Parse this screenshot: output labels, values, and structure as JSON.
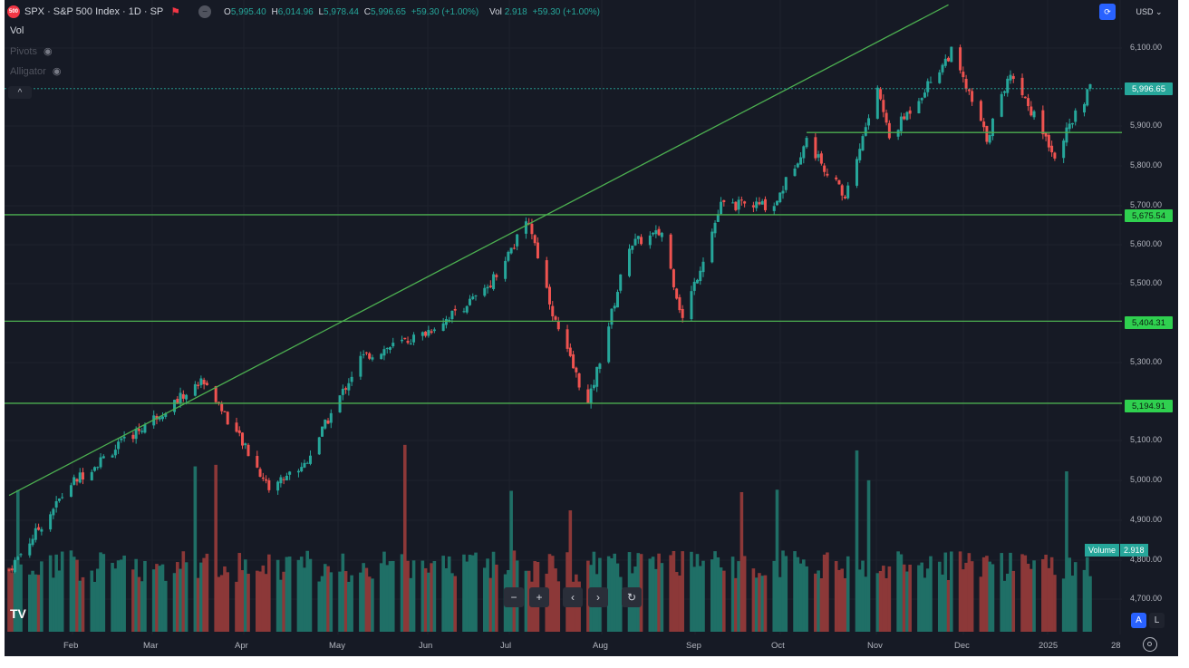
{
  "header": {
    "badge_text": "500",
    "title": "SPX · S&P 500 Index · 1D · SP",
    "ohlc": {
      "o_label": "O",
      "o": "5,995.40",
      "h_label": "H",
      "h": "6,014.96",
      "l_label": "L",
      "l": "5,978.44",
      "c_label": "C",
      "c": "5,996.65",
      "change": "+59.30 (+1.00%)",
      "vol_label": "Vol",
      "vol": "2.918",
      "vol_change": "+59.30 (+1.00%)"
    }
  },
  "panel": {
    "vol_label": "Vol",
    "pivots_label": "Pivots",
    "alligator_label": "Alligator",
    "collapse_glyph": "^"
  },
  "toolbar": {
    "currency": "USD",
    "currency_caret": "⌄",
    "nav": [
      "−",
      "+",
      "‹",
      "›",
      "↻"
    ],
    "scale_auto": "A",
    "scale_log": "L"
  },
  "price_axis": {
    "ticks": [
      "6,100.00",
      "5,900.00",
      "5,800.00",
      "5,700.00",
      "5,600.00",
      "5,500.00",
      "5,300.00",
      "5,100.00",
      "5,000.00",
      "4,900.00",
      "4,800.00",
      "4,700.00"
    ],
    "tags": {
      "last": "5,996.65",
      "level1": "5,675.54",
      "level2": "5,404.31",
      "level3": "5,194.91"
    }
  },
  "volume_tag": {
    "label": "Volume",
    "value": "2.918"
  },
  "time_axis": [
    "Feb",
    "Mar",
    "Apr",
    "May",
    "Jun",
    "Jul",
    "Aug",
    "Sep",
    "Oct",
    "Nov",
    "Dec",
    "2025",
    "28"
  ],
  "logo_text": "TV",
  "colors": {
    "up": "#26a69a",
    "down": "#ef5350",
    "level_line": "#4caf50",
    "background": "#161a25",
    "tag_bg": "#2fd04f"
  },
  "chart_data": {
    "type": "candlestick",
    "symbol": "SPX",
    "timeframe": "1D",
    "x_range": [
      "2024-01-22",
      "2025-01-22"
    ],
    "ylim": [
      4650,
      6150
    ],
    "levels": [
      5675.54,
      5404.31,
      5194.91
    ],
    "resistance_segment": {
      "from": "2024-10-18",
      "to": "2025-01-22",
      "value": 5885
    },
    "trendline": {
      "from": {
        "date": "2024-01-22",
        "value": 4960
      },
      "to": {
        "date": "2024-12-05",
        "value": 6210
      }
    },
    "last_price": 5996.65,
    "close_path": [
      {
        "date": "2024-01-22",
        "close": 4770
      },
      {
        "date": "2024-02-12",
        "close": 4990
      },
      {
        "date": "2024-03-08",
        "close": 5140
      },
      {
        "date": "2024-03-28",
        "close": 5255
      },
      {
        "date": "2024-04-19",
        "close": 4980
      },
      {
        "date": "2024-05-01",
        "close": 5040
      },
      {
        "date": "2024-05-20",
        "close": 5310
      },
      {
        "date": "2024-06-10",
        "close": 5370
      },
      {
        "date": "2024-07-01",
        "close": 5480
      },
      {
        "date": "2024-07-16",
        "close": 5660
      },
      {
        "date": "2024-07-25",
        "close": 5400
      },
      {
        "date": "2024-08-05",
        "close": 5190
      },
      {
        "date": "2024-08-19",
        "close": 5600
      },
      {
        "date": "2024-08-30",
        "close": 5630
      },
      {
        "date": "2024-09-06",
        "close": 5410
      },
      {
        "date": "2024-09-19",
        "close": 5700
      },
      {
        "date": "2024-10-07",
        "close": 5700
      },
      {
        "date": "2024-10-18",
        "close": 5865
      },
      {
        "date": "2024-10-31",
        "close": 5720
      },
      {
        "date": "2024-11-11",
        "close": 6000
      },
      {
        "date": "2024-11-15",
        "close": 5870
      },
      {
        "date": "2024-12-06",
        "close": 6090
      },
      {
        "date": "2024-12-18",
        "close": 5870
      },
      {
        "date": "2024-12-26",
        "close": 6040
      },
      {
        "date": "2025-01-10",
        "close": 5830
      },
      {
        "date": "2025-01-22",
        "close": 5996.65
      }
    ]
  }
}
